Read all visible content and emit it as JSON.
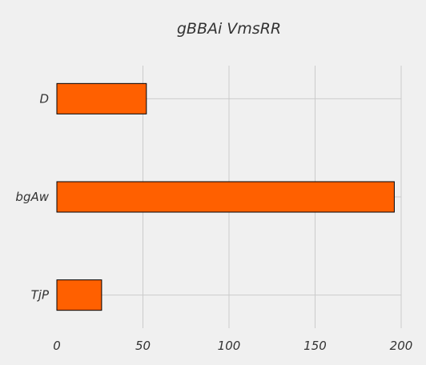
{
  "chart_data": {
    "type": "bar",
    "orientation": "horizontal",
    "title": "gBBAi VmsRR",
    "xlabel": "",
    "ylabel": "",
    "categories": [
      "D",
      "bgAw",
      "TjP"
    ],
    "values": [
      52,
      196,
      26
    ],
    "xlim": [
      0,
      200
    ],
    "xticks": [
      0,
      50,
      100,
      150,
      200
    ],
    "grid": true,
    "bar_color": "#ff6000",
    "background_color": "#f0f0f0"
  }
}
